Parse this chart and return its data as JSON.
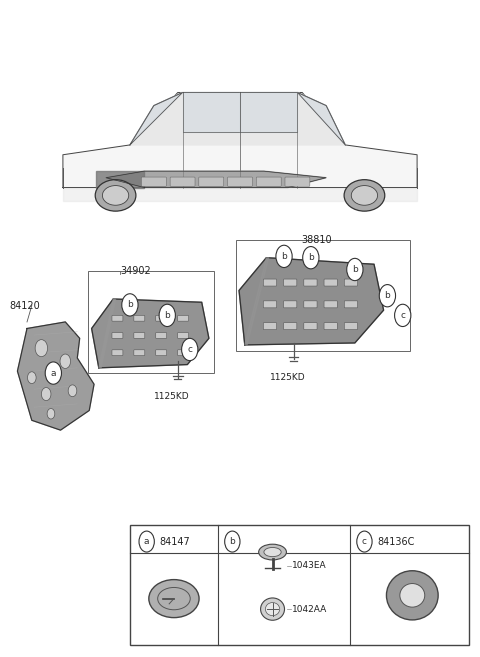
{
  "bg_color": "#ffffff",
  "fig_width": 4.8,
  "fig_height": 6.57,
  "dpi": 100,
  "part_84120_text": "84120",
  "part_34902_text": "34902",
  "part_38810_text": "38810",
  "fastener_text": "1125KD",
  "legend_a_num": "84147",
  "legend_b_1": "1043EA",
  "legend_b_2": "1042AA",
  "legend_c_num": "84136C"
}
